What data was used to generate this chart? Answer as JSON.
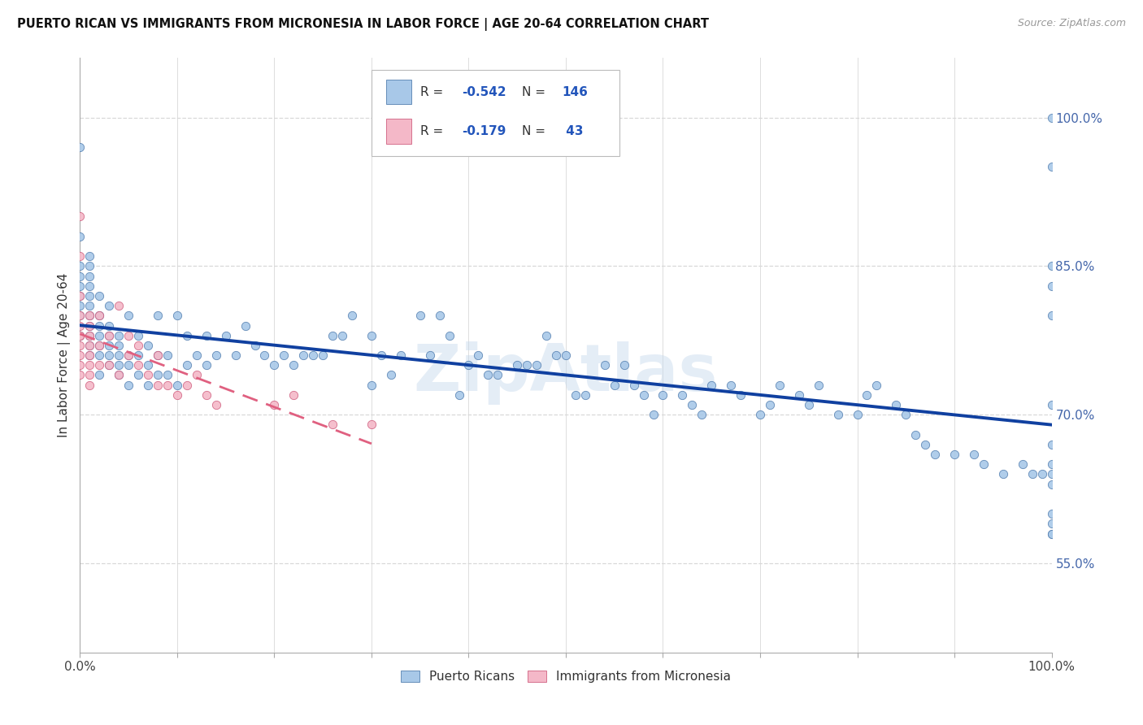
{
  "title": "PUERTO RICAN VS IMMIGRANTS FROM MICRONESIA IN LABOR FORCE | AGE 20-64 CORRELATION CHART",
  "source": "Source: ZipAtlas.com",
  "ylabel": "In Labor Force | Age 20-64",
  "xmin": 0.0,
  "xmax": 1.0,
  "ymin": 0.46,
  "ymax": 1.06,
  "ytick_vals": [
    0.55,
    0.7,
    0.85,
    1.0
  ],
  "ytick_labels": [
    "55.0%",
    "70.0%",
    "85.0%",
    "100.0%"
  ],
  "blue_R": -0.542,
  "blue_N": 146,
  "pink_R": -0.179,
  "pink_N": 43,
  "blue_color": "#a8c8e8",
  "pink_color": "#f4b8c8",
  "blue_edge_color": "#5580b0",
  "pink_edge_color": "#d06080",
  "blue_line_color": "#1040a0",
  "pink_line_color": "#e06080",
  "watermark": "ZipAtlas",
  "legend_label_blue": "Puerto Ricans",
  "legend_label_pink": "Immigrants from Micronesia",
  "background_color": "#ffffff",
  "grid_color": "#d8d8d8",
  "blue_scatter_x": [
    0.0,
    0.0,
    0.0,
    0.0,
    0.0,
    0.0,
    0.0,
    0.0,
    0.0,
    0.01,
    0.01,
    0.01,
    0.01,
    0.01,
    0.01,
    0.01,
    0.01,
    0.01,
    0.01,
    0.01,
    0.02,
    0.02,
    0.02,
    0.02,
    0.02,
    0.02,
    0.02,
    0.03,
    0.03,
    0.03,
    0.03,
    0.03,
    0.03,
    0.04,
    0.04,
    0.04,
    0.04,
    0.04,
    0.05,
    0.05,
    0.05,
    0.05,
    0.06,
    0.06,
    0.06,
    0.07,
    0.07,
    0.07,
    0.08,
    0.08,
    0.08,
    0.09,
    0.09,
    0.1,
    0.1,
    0.11,
    0.11,
    0.12,
    0.13,
    0.13,
    0.14,
    0.15,
    0.16,
    0.17,
    0.18,
    0.19,
    0.2,
    0.21,
    0.22,
    0.23,
    0.24,
    0.25,
    0.26,
    0.27,
    0.28,
    0.3,
    0.3,
    0.31,
    0.32,
    0.33,
    0.35,
    0.36,
    0.37,
    0.38,
    0.39,
    0.4,
    0.41,
    0.42,
    0.43,
    0.45,
    0.46,
    0.47,
    0.48,
    0.49,
    0.5,
    0.51,
    0.52,
    0.54,
    0.55,
    0.56,
    0.57,
    0.58,
    0.59,
    0.6,
    0.62,
    0.63,
    0.64,
    0.65,
    0.67,
    0.68,
    0.7,
    0.71,
    0.72,
    0.74,
    0.75,
    0.76,
    0.78,
    0.8,
    0.81,
    0.82,
    0.84,
    0.85,
    0.86,
    0.87,
    0.88,
    0.9,
    0.92,
    0.93,
    0.95,
    0.97,
    0.98,
    0.99,
    1.0,
    1.0,
    1.0,
    1.0,
    1.0,
    1.0,
    1.0,
    1.0,
    1.0,
    1.0,
    1.0,
    1.0,
    1.0,
    1.0
  ],
  "blue_scatter_y": [
    0.78,
    0.8,
    0.81,
    0.82,
    0.83,
    0.84,
    0.85,
    0.88,
    0.97,
    0.76,
    0.77,
    0.78,
    0.79,
    0.8,
    0.81,
    0.82,
    0.83,
    0.84,
    0.85,
    0.86,
    0.74,
    0.76,
    0.77,
    0.78,
    0.79,
    0.8,
    0.82,
    0.75,
    0.76,
    0.77,
    0.78,
    0.79,
    0.81,
    0.74,
    0.75,
    0.76,
    0.77,
    0.78,
    0.73,
    0.75,
    0.76,
    0.8,
    0.74,
    0.76,
    0.78,
    0.73,
    0.75,
    0.77,
    0.74,
    0.76,
    0.8,
    0.74,
    0.76,
    0.73,
    0.8,
    0.75,
    0.78,
    0.76,
    0.75,
    0.78,
    0.76,
    0.78,
    0.76,
    0.79,
    0.77,
    0.76,
    0.75,
    0.76,
    0.75,
    0.76,
    0.76,
    0.76,
    0.78,
    0.78,
    0.8,
    0.73,
    0.78,
    0.76,
    0.74,
    0.76,
    0.8,
    0.76,
    0.8,
    0.78,
    0.72,
    0.75,
    0.76,
    0.74,
    0.74,
    0.75,
    0.75,
    0.75,
    0.78,
    0.76,
    0.76,
    0.72,
    0.72,
    0.75,
    0.73,
    0.75,
    0.73,
    0.72,
    0.7,
    0.72,
    0.72,
    0.71,
    0.7,
    0.73,
    0.73,
    0.72,
    0.7,
    0.71,
    0.73,
    0.72,
    0.71,
    0.73,
    0.7,
    0.7,
    0.72,
    0.73,
    0.71,
    0.7,
    0.68,
    0.67,
    0.66,
    0.66,
    0.66,
    0.65,
    0.64,
    0.65,
    0.64,
    0.64,
    0.58,
    0.58,
    0.59,
    0.6,
    0.63,
    0.64,
    0.65,
    0.67,
    0.71,
    0.8,
    0.83,
    0.85,
    0.95,
    1.0
  ],
  "pink_scatter_x": [
    0.0,
    0.0,
    0.0,
    0.0,
    0.0,
    0.0,
    0.0,
    0.0,
    0.0,
    0.0,
    0.0,
    0.01,
    0.01,
    0.01,
    0.01,
    0.01,
    0.01,
    0.01,
    0.01,
    0.02,
    0.02,
    0.02,
    0.03,
    0.03,
    0.04,
    0.04,
    0.05,
    0.05,
    0.06,
    0.06,
    0.07,
    0.08,
    0.08,
    0.09,
    0.1,
    0.11,
    0.12,
    0.13,
    0.14,
    0.2,
    0.22,
    0.26,
    0.3
  ],
  "pink_scatter_y": [
    0.74,
    0.75,
    0.76,
    0.77,
    0.78,
    0.78,
    0.79,
    0.8,
    0.82,
    0.86,
    0.9,
    0.73,
    0.74,
    0.75,
    0.76,
    0.77,
    0.78,
    0.79,
    0.8,
    0.75,
    0.77,
    0.8,
    0.75,
    0.78,
    0.74,
    0.81,
    0.76,
    0.78,
    0.75,
    0.77,
    0.74,
    0.73,
    0.76,
    0.73,
    0.72,
    0.73,
    0.74,
    0.72,
    0.71,
    0.71,
    0.72,
    0.69,
    0.69
  ]
}
